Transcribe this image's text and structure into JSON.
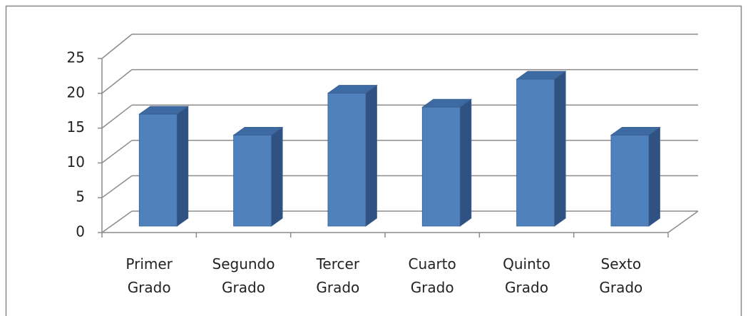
{
  "chart_data": {
    "type": "bar3d",
    "categories": [
      "Primer Grado",
      "Segundo Grado",
      "Tercer Grado",
      "Cuarto Grado",
      "Quinto Grado",
      "Sexto Grado"
    ],
    "values": [
      16,
      13,
      19,
      17,
      21,
      13
    ],
    "color": "#4f81bd",
    "ylim": [
      0,
      25
    ],
    "yticks": [
      0,
      5,
      10,
      15,
      20,
      25
    ],
    "grid": true
  }
}
